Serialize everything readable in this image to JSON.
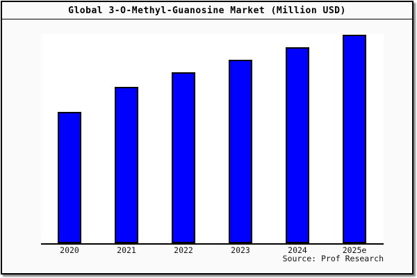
{
  "title": "Global 3-O-Methyl-Guanosine Market (Million USD)",
  "source_credit": "Source: Prof Research",
  "colors": {
    "bar_fill": "#0000ff",
    "bar_border": "#000000",
    "frame_background": "#fafafa",
    "plot_background": "#ffffff",
    "frame_border": "#000000",
    "text": "#000000"
  },
  "chart_data": {
    "type": "bar",
    "title": "Global 3-O-Methyl-Guanosine Market (Million USD)",
    "categories": [
      "2020",
      "2021",
      "2022",
      "2023",
      "2024",
      "2025e"
    ],
    "values": [
      63,
      75,
      82,
      88,
      94,
      100
    ],
    "units": "relative index (no y-axis scale shown; tallest bar 2025e = 100)",
    "xlabel": "",
    "ylabel": "",
    "ylim": [
      0,
      100
    ],
    "grid": false,
    "legend": false,
    "y_axis_labels_visible": false,
    "source": "Source: Prof Research"
  }
}
